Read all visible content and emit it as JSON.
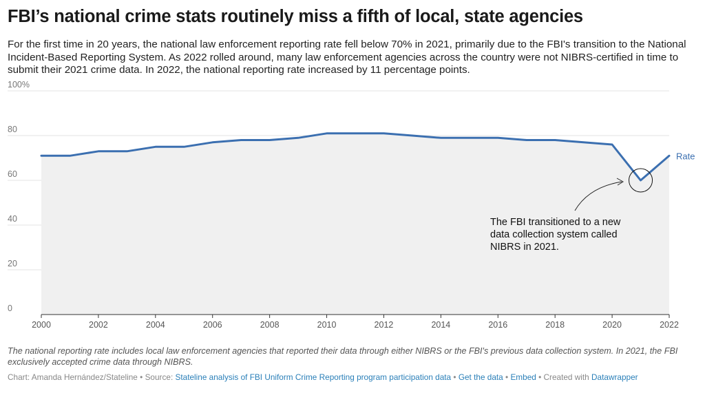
{
  "title": "FBI’s national crime stats routinely miss a fifth of local, state agencies",
  "subtitle": "For the first time in 20 years, the national law enforcement reporting rate fell below 70% in 2021, primarily due to the FBI's transition to the National Incident-Based Reporting System. As 2022 rolled around, many law enforcement agencies across the country were not NIBRS-certified in time to submit their 2021 crime data. In 2022, the national reporting rate increased by 11 percentage points.",
  "notes": "The national reporting rate includes local law enforcement agencies that reported their data through either NIBRS or the FBI's previous data collection system. In 2021, the FBI exclusively accepted crime data through NIBRS.",
  "footer": {
    "credit": "Chart: Amanda Hernández/Stateline",
    "source_label": "Source:",
    "source_link": "Stateline analysis of FBI Uniform Crime Reporting program participation data",
    "get_data": "Get the data",
    "embed": "Embed",
    "created_with": "Created with",
    "datawrapper": "Datawrapper",
    "sep": " • "
  },
  "colors": {
    "line": "#3b6fb0",
    "area": "#f0f0f0",
    "grid": "#e3e3e3",
    "axis": "#333333",
    "tick": "#777777",
    "link": "#2a7fb8"
  },
  "chart_data": {
    "type": "area",
    "x": [
      2000,
      2001,
      2002,
      2003,
      2004,
      2005,
      2006,
      2007,
      2008,
      2009,
      2010,
      2011,
      2012,
      2013,
      2014,
      2015,
      2016,
      2017,
      2018,
      2019,
      2020,
      2021,
      2022
    ],
    "series": [
      {
        "name": "Rate",
        "values": [
          71,
          71,
          73,
          73,
          75,
          75,
          77,
          78,
          78,
          79,
          81,
          81,
          81,
          80,
          79,
          79,
          79,
          78,
          78,
          77,
          76,
          60,
          71
        ]
      }
    ],
    "xlim": [
      2000,
      2022
    ],
    "ylim": [
      0,
      100
    ],
    "x_ticks": [
      "2000",
      "2002",
      "2004",
      "2006",
      "2008",
      "2010",
      "2012",
      "2014",
      "2016",
      "2018",
      "2020",
      "2022"
    ],
    "x_tick_values": [
      2000,
      2002,
      2004,
      2006,
      2008,
      2010,
      2012,
      2014,
      2016,
      2018,
      2020,
      2022
    ],
    "y_ticks": [
      "0",
      "20",
      "40",
      "60",
      "80",
      "100%"
    ],
    "y_tick_values": [
      0,
      20,
      40,
      60,
      80,
      100
    ],
    "grid": true,
    "series_label": "Rate",
    "annotation": {
      "lines": [
        "The FBI transitioned to a new",
        "data collection system called",
        "NIBRS in 2021."
      ],
      "target_x": 2021,
      "target_y": 60
    }
  }
}
